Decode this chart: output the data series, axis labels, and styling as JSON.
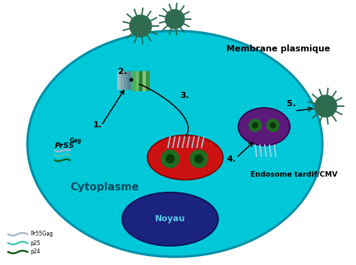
{
  "bg_color": "#ffffff",
  "cell_color": "#00c8d8",
  "cell_edge_color": "#0090a8",
  "nucleus_color": "#1a237e",
  "nucleus_edge_color": "#0d1057",
  "nucleus_text": "Noyau",
  "nucleus_text_color": "#5bc8e8",
  "red_organelle_color": "#cc1111",
  "red_organelle_edge": "#880000",
  "purple_organelle_color": "#5b1a7a",
  "purple_organelle_edge": "#3a0050",
  "green_dots_color": "#1e6e22",
  "label_membrane": "Membrane plasmique",
  "label_cytoplasm": "Cytoplasme",
  "label_endosome": "Endosome tardif/CMV",
  "label_pr55": "Pr55",
  "label_pr55_super": "Gag",
  "label_1": "1.",
  "label_2": "2.",
  "label_3": "3.",
  "label_4": "4.",
  "label_5": "5.",
  "virus_color": "#2e6b4f",
  "legend_labels": [
    "Pr55Gag",
    "p25",
    "p24"
  ],
  "legend_colors": [
    "#aabbcc",
    "#50c8b0",
    "#1b5e20"
  ],
  "cilia_color": "#a0d0e8"
}
